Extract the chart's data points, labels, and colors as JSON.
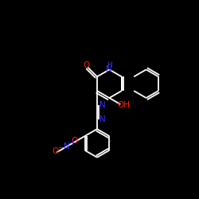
{
  "bg_color": "#000000",
  "bond_color": "#ffffff",
  "label_colors": {
    "N": "#3333ff",
    "O": "#ff2200",
    "H": "#3333ff"
  },
  "figsize": [
    2.5,
    2.5
  ],
  "dpi": 100
}
